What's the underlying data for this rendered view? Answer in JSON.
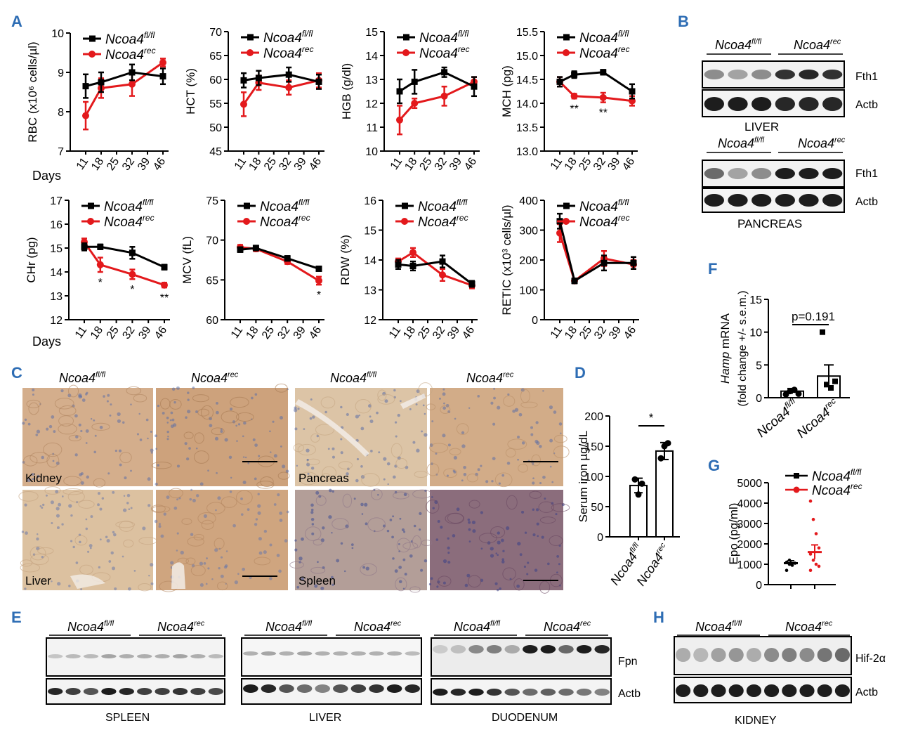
{
  "figure": {
    "panel_letters": [
      "A",
      "B",
      "C",
      "D",
      "E",
      "F",
      "G",
      "H"
    ],
    "genotypes": {
      "fl": "Ncoa4",
      "fl_sup": "fl/fl",
      "rec": "Ncoa4",
      "rec_sup": "rec"
    },
    "colors": {
      "fl": "#000000",
      "rec": "#e3191c"
    },
    "days_label": "Days",
    "micrograph_labels": [
      "Kidney",
      "Pancreas",
      "Liver",
      "Spleen"
    ],
    "blot_labels": {
      "fth1": "Fth1",
      "actb": "Actb",
      "fpn": "Fpn",
      "hif": "Hif-2α",
      "liver": "LIVER",
      "pancreas": "PANCREAS",
      "spleen": "SPLEEN",
      "duodenum": "DUODENUM",
      "kidney": "KIDNEY"
    }
  },
  "chart_data": [
    {
      "id": "RBC",
      "type": "line",
      "ylabel": "RBC (x10⁶ cells/µl)",
      "x": [
        11,
        18,
        25,
        32,
        39,
        46
      ],
      "xticks": [],
      "ylim": [
        7,
        10
      ],
      "yticks": [
        7,
        8,
        9,
        10
      ],
      "series": [
        {
          "name": "Ncoa4 fl/fl",
          "x": [
            11,
            18,
            32,
            46
          ],
          "values": [
            8.65,
            8.75,
            9.0,
            8.9
          ],
          "err": [
            0.3,
            0.25,
            0.2,
            0.2
          ]
        },
        {
          "name": "Ncoa4 rec",
          "x": [
            11,
            18,
            32,
            46
          ],
          "values": [
            7.9,
            8.6,
            8.7,
            9.25
          ],
          "err": [
            0.35,
            0.25,
            0.3,
            0.1
          ]
        }
      ],
      "sig": []
    },
    {
      "id": "HCT",
      "type": "line",
      "ylabel": "HCT (%)",
      "xticks": [
        11,
        18,
        25,
        32,
        39,
        46
      ],
      "ylim": [
        45,
        70
      ],
      "yticks": [
        45,
        50,
        55,
        60,
        65,
        70
      ],
      "series": [
        {
          "name": "Ncoa4 fl/fl",
          "x": [
            11,
            18,
            32,
            46
          ],
          "values": [
            59.8,
            60.3,
            61.0,
            59.5
          ],
          "err": [
            1.5,
            1.5,
            1.5,
            1.5
          ]
        },
        {
          "name": "Ncoa4 rec",
          "x": [
            11,
            18,
            32,
            46
          ],
          "values": [
            54.8,
            59.3,
            58.3,
            59.8
          ],
          "err": [
            2.5,
            1.5,
            1.5,
            1.5
          ]
        }
      ],
      "sig": []
    },
    {
      "id": "HGB",
      "type": "line",
      "ylabel": "HGB (g/dl)",
      "xticks": [
        11,
        18,
        25,
        32,
        39,
        46
      ],
      "ylim": [
        10,
        15
      ],
      "yticks": [
        10,
        11,
        12,
        13,
        14,
        15
      ],
      "series": [
        {
          "name": "Ncoa4 fl/fl",
          "x": [
            11,
            18,
            32,
            46
          ],
          "values": [
            12.5,
            12.9,
            13.3,
            12.7
          ],
          "err": [
            0.5,
            0.5,
            0.2,
            0.4
          ]
        },
        {
          "name": "Ncoa4 rec",
          "x": [
            11,
            18,
            32,
            46
          ],
          "values": [
            11.3,
            12.0,
            12.3,
            12.9
          ],
          "err": [
            0.6,
            0.2,
            0.4,
            0.2
          ]
        }
      ],
      "sig": []
    },
    {
      "id": "MCH",
      "type": "line",
      "ylabel": "MCH (pg)",
      "xticks": [
        11,
        18,
        25,
        32,
        39,
        46
      ],
      "ylim": [
        13.0,
        15.5
      ],
      "yticks": [
        13.0,
        13.5,
        14.0,
        14.5,
        15.0,
        15.5
      ],
      "series": [
        {
          "name": "Ncoa4 fl/fl",
          "x": [
            11,
            18,
            32,
            46
          ],
          "values": [
            14.45,
            14.6,
            14.65,
            14.25
          ],
          "err": [
            0.1,
            0.07,
            0.05,
            0.15
          ]
        },
        {
          "name": "Ncoa4 rec",
          "x": [
            11,
            18,
            32,
            46
          ],
          "values": [
            14.45,
            14.15,
            14.12,
            14.05
          ],
          "err": [
            0.1,
            0.05,
            0.1,
            0.1
          ]
        }
      ],
      "sig": [
        {
          "x": 18,
          "label": "**"
        },
        {
          "x": 32,
          "label": "**"
        }
      ]
    },
    {
      "id": "CHr",
      "type": "line",
      "ylabel": "CHr (pg)",
      "xticks": [
        11,
        18,
        25,
        32,
        39,
        46
      ],
      "ylim": [
        12,
        17
      ],
      "yticks": [
        12,
        13,
        14,
        15,
        16,
        17
      ],
      "series": [
        {
          "name": "Ncoa4 fl/fl",
          "x": [
            11,
            18,
            32,
            46
          ],
          "values": [
            15.05,
            15.05,
            14.8,
            14.2
          ],
          "err": [
            0.15,
            0.1,
            0.25,
            0.1
          ]
        },
        {
          "name": "Ncoa4 rec",
          "x": [
            11,
            18,
            32,
            46
          ],
          "values": [
            15.25,
            14.3,
            13.9,
            13.45
          ],
          "err": [
            0.15,
            0.3,
            0.2,
            0.1
          ]
        }
      ],
      "sig": [
        {
          "x": 18,
          "label": "*"
        },
        {
          "x": 32,
          "label": "*"
        },
        {
          "x": 46,
          "label": "**"
        }
      ]
    },
    {
      "id": "MCV",
      "type": "line",
      "ylabel": "MCV (fL)",
      "xticks": [
        11,
        18,
        25,
        32,
        39,
        46
      ],
      "ylim": [
        60,
        75
      ],
      "yticks": [
        60,
        65,
        70,
        75
      ],
      "series": [
        {
          "name": "Ncoa4 fl/fl",
          "x": [
            11,
            18,
            32,
            46
          ],
          "values": [
            68.8,
            69.0,
            67.7,
            66.4
          ],
          "err": [
            0.3,
            0.3,
            0.3,
            0.2
          ]
        },
        {
          "name": "Ncoa4 rec",
          "x": [
            11,
            18,
            32,
            46
          ],
          "values": [
            69.1,
            68.9,
            67.3,
            64.9
          ],
          "err": [
            0.3,
            0.3,
            0.3,
            0.5
          ]
        }
      ],
      "sig": [
        {
          "x": 46,
          "label": "*"
        }
      ]
    },
    {
      "id": "RDW",
      "type": "line",
      "ylabel": "RDW (%)",
      "xticks": [
        11,
        18,
        25,
        32,
        39,
        46
      ],
      "ylim": [
        12,
        16
      ],
      "yticks": [
        12,
        13,
        14,
        15,
        16
      ],
      "series": [
        {
          "name": "Ncoa4 fl/fl",
          "x": [
            11,
            18,
            32,
            46
          ],
          "values": [
            13.85,
            13.8,
            13.95,
            13.2
          ],
          "err": [
            0.15,
            0.15,
            0.2,
            0.1
          ]
        },
        {
          "name": "Ncoa4 rec",
          "x": [
            11,
            18,
            32,
            46
          ],
          "values": [
            13.95,
            14.25,
            13.5,
            13.15
          ],
          "err": [
            0.1,
            0.15,
            0.2,
            0.1
          ]
        }
      ],
      "sig": []
    },
    {
      "id": "RETIC",
      "type": "line",
      "ylabel": "RETIC (x10³ cells/µl)",
      "xticks": [
        11,
        18,
        25,
        32,
        39,
        46
      ],
      "ylim": [
        0,
        400
      ],
      "yticks": [
        0,
        100,
        200,
        300,
        400
      ],
      "series": [
        {
          "name": "Ncoa4 fl/fl",
          "x": [
            11,
            18,
            32,
            46
          ],
          "values": [
            330,
            130,
            190,
            190
          ],
          "err": [
            25,
            8,
            25,
            20
          ]
        },
        {
          "name": "Ncoa4 rec",
          "x": [
            11,
            18,
            32,
            46
          ],
          "values": [
            290,
            130,
            205,
            185
          ],
          "err": [
            30,
            8,
            25,
            15
          ]
        }
      ],
      "sig": []
    },
    {
      "id": "D",
      "type": "bar",
      "ylabel": "Serum iron µg/dL",
      "ylim": [
        0,
        200
      ],
      "yticks": [
        0,
        50,
        100,
        150,
        200
      ],
      "categories": [
        "Ncoa4 fl/fl",
        "Ncoa4 rec"
      ],
      "values": [
        85,
        142
      ],
      "err": [
        12,
        14
      ],
      "points": [
        [
          95,
          70,
          88
        ],
        [
          130,
          150,
          155
        ]
      ],
      "sig": "*"
    },
    {
      "id": "F",
      "type": "bar",
      "ylabel": "Hamp mRNA (fold change +/- s.e.m.)",
      "ylim": [
        0,
        15
      ],
      "yticks": [
        0,
        5,
        10,
        15
      ],
      "categories": [
        "Ncoa4 fl/fl",
        "Ncoa4 rec"
      ],
      "values": [
        1.0,
        3.3
      ],
      "err": [
        0.4,
        1.7
      ],
      "points": [
        [
          0.5,
          1.0,
          1.2,
          0.6
        ],
        [
          10.0,
          2.0,
          1.5,
          2.5
        ]
      ],
      "pvalue": "p=0.191"
    },
    {
      "id": "G",
      "type": "scatter",
      "ylabel": "Epo  (pg/ml)",
      "ylim": [
        0,
        5000
      ],
      "yticks": [
        0,
        1000,
        2000,
        3000,
        4000,
        5000
      ],
      "series": [
        {
          "name": "Ncoa4 fl/fl",
          "mean": 1050,
          "err": 120,
          "values": [
            1100,
            1000,
            950,
            1050,
            700,
            1200
          ]
        },
        {
          "name": "Ncoa4 rec",
          "mean": 1600,
          "err": 350,
          "values": [
            4100,
            3200,
            2500,
            1800,
            1500,
            1200,
            1000,
            900,
            700
          ]
        }
      ]
    }
  ]
}
